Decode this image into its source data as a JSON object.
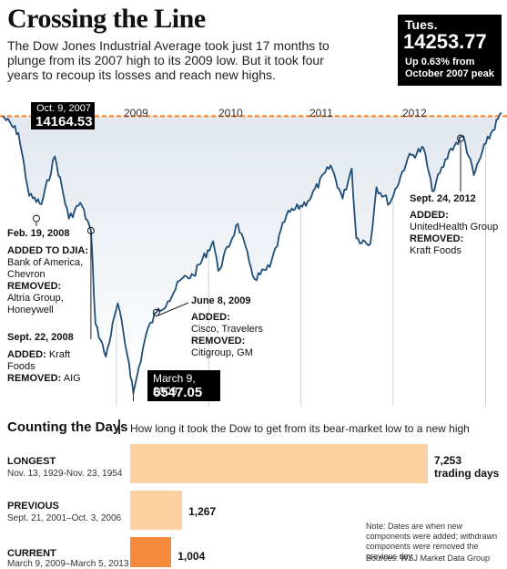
{
  "title": "Crossing the Line",
  "subtitle": "The Dow Jones Industrial Average took just 17 months to plunge from its 2007 high to its 2009 low. But it took four years to recoup its losses and reach new highs.",
  "tues": {
    "day": "Tues.",
    "value": "14253.77",
    "note": "Up 0.63% from October 2007 peak"
  },
  "peak": {
    "date": "Oct. 9, 2007",
    "value": "14164.53"
  },
  "low": {
    "date": "March 9, 2009",
    "value": "6547.05"
  },
  "years": [
    "2009",
    "2010",
    "2011",
    "2012"
  ],
  "annotations": {
    "feb2008": {
      "date": "Feb. 19, 2008",
      "h1": "ADDED TO DJIA:",
      "t1": "Bank of America, Chevron",
      "h2": "REMOVED:",
      "t2": "Altria Group, Honeywell"
    },
    "sep2008": {
      "date": "Sept. 22, 2008",
      "h1": "ADDED:",
      "t1": "Kraft Foods",
      "h2": "REMOVED:",
      "t2": "AIG"
    },
    "jun2009": {
      "date": "June 8, 2009",
      "h1": "ADDED:",
      "t1": "Cisco, Travelers",
      "h2": "REMOVED:",
      "t2": "Citigroup, GM"
    },
    "sep2012": {
      "date": "Sept. 24, 2012",
      "h1": "ADDED:",
      "t1": "UnitedHealth Group",
      "h2": "REMOVED:",
      "t2": "Kraft Foods"
    }
  },
  "colors": {
    "line": "#1f4e79",
    "fill_top": "#dfe6ee",
    "peak_line": "#f07e2b",
    "bar_light": "#fdd0a2",
    "bar_current": "#f58a3c"
  },
  "chart_data": [
    {
      "type": "line",
      "title": "Crossing the Line",
      "x": [
        "2007-10-09",
        "2007-12-10",
        "2008-01-22",
        "2008-03-10",
        "2008-05-02",
        "2008-06-27",
        "2008-08-11",
        "2008-09-22",
        "2008-10-10",
        "2008-11-20",
        "2009-01-06",
        "2009-02-20",
        "2009-03-09",
        "2009-04-30",
        "2009-06-08",
        "2009-07-23",
        "2009-09-15",
        "2009-11-02",
        "2010-01-19",
        "2010-02-08",
        "2010-04-26",
        "2010-06-10",
        "2010-07-02",
        "2010-08-31",
        "2010-11-05",
        "2011-01-28",
        "2011-04-29",
        "2011-06-15",
        "2011-07-21",
        "2011-08-08",
        "2011-10-03",
        "2011-10-27",
        "2011-12-19",
        "2012-02-28",
        "2012-05-01",
        "2012-06-04",
        "2012-08-17",
        "2012-10-05",
        "2012-11-15",
        "2013-01-02",
        "2013-03-05"
      ],
      "values": [
        14164.53,
        13700,
        11971,
        11740,
        13058,
        11346,
        11782,
        11016,
        8451,
        7552,
        9015,
        7365,
        6547.05,
        8212,
        8764,
        9069,
        9683,
        9789,
        10725,
        9908,
        11205,
        10172,
        9686,
        10015,
        11444,
        11823,
        12811,
        11897,
        12724,
        10810,
        10655,
        12209,
        11766,
        13005,
        13279,
        12101,
        13275,
        13610,
        12542,
        13412,
        14253.77
      ],
      "ylim": [
        6200,
        14700
      ],
      "reference_line": 14164.53,
      "grid": false,
      "legend": "none"
    },
    {
      "type": "bar",
      "title": "Counting the Days",
      "categories": [
        "LONGEST",
        "PREVIOUS",
        "CURRENT"
      ],
      "periods": [
        "Nov. 13, 1929-Nov. 23, 1954",
        "Sept. 21, 2001–Oct. 3, 2006",
        "March 9, 2009–March 5, 2013"
      ],
      "values": [
        7253,
        1267,
        1004
      ],
      "value_labels": [
        "7,253",
        "1,267",
        "1,004"
      ],
      "unit_label": "trading days",
      "ylabel": "How long it took the Dow to get from its bear-market low to a new high"
    }
  ],
  "bars_section": {
    "title": "Counting the Days",
    "description": "How long it took the Dow to get from its bear-market low to a new high"
  },
  "footnote": "Note: Dates are when new components were added; withdrawn components were removed the previous day",
  "source": "Sources: WSJ Market Data Group"
}
